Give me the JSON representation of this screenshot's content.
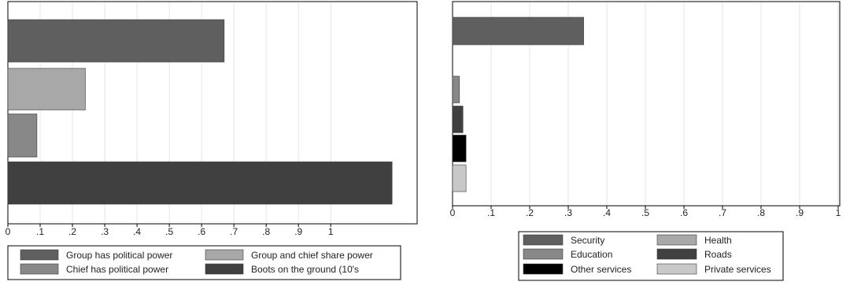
{
  "chart_data": [
    {
      "type": "bar",
      "orientation": "horizontal",
      "xlim": [
        0,
        1.2
      ],
      "xticks": [
        "0",
        ".1",
        ".2",
        ".3",
        ".4",
        ".5",
        ".6",
        ".7",
        ".8",
        ".9",
        "1"
      ],
      "grid": true,
      "legend_position": "bottom",
      "series": [
        {
          "name": "Group has political power",
          "value": 0.67,
          "color": "#5f5f5f"
        },
        {
          "name": "Group and chief share power",
          "value": 0.24,
          "color": "#a8a8a8"
        },
        {
          "name": "Chief has political power",
          "value": 0.09,
          "color": "#888888"
        },
        {
          "name": "Boots on the ground (10's",
          "value": 1.19,
          "color": "#404040"
        }
      ]
    },
    {
      "type": "bar",
      "orientation": "horizontal",
      "xlim": [
        0,
        1
      ],
      "xticks": [
        "0",
        ".1",
        ".2",
        ".3",
        ".4",
        ".5",
        ".6",
        ".7",
        ".8",
        ".9",
        "1"
      ],
      "grid": true,
      "legend_position": "bottom",
      "series": [
        {
          "name": "Security",
          "value": 0.34,
          "color": "#5f5f5f"
        },
        {
          "name": "Health",
          "value": 0.0,
          "color": "#a8a8a8"
        },
        {
          "name": "Education",
          "value": 0.018,
          "color": "#888888"
        },
        {
          "name": "Roads",
          "value": 0.027,
          "color": "#404040"
        },
        {
          "name": "Other services",
          "value": 0.035,
          "color": "#000000"
        },
        {
          "name": "Private services",
          "value": 0.035,
          "color": "#c8c8c8"
        }
      ]
    }
  ]
}
